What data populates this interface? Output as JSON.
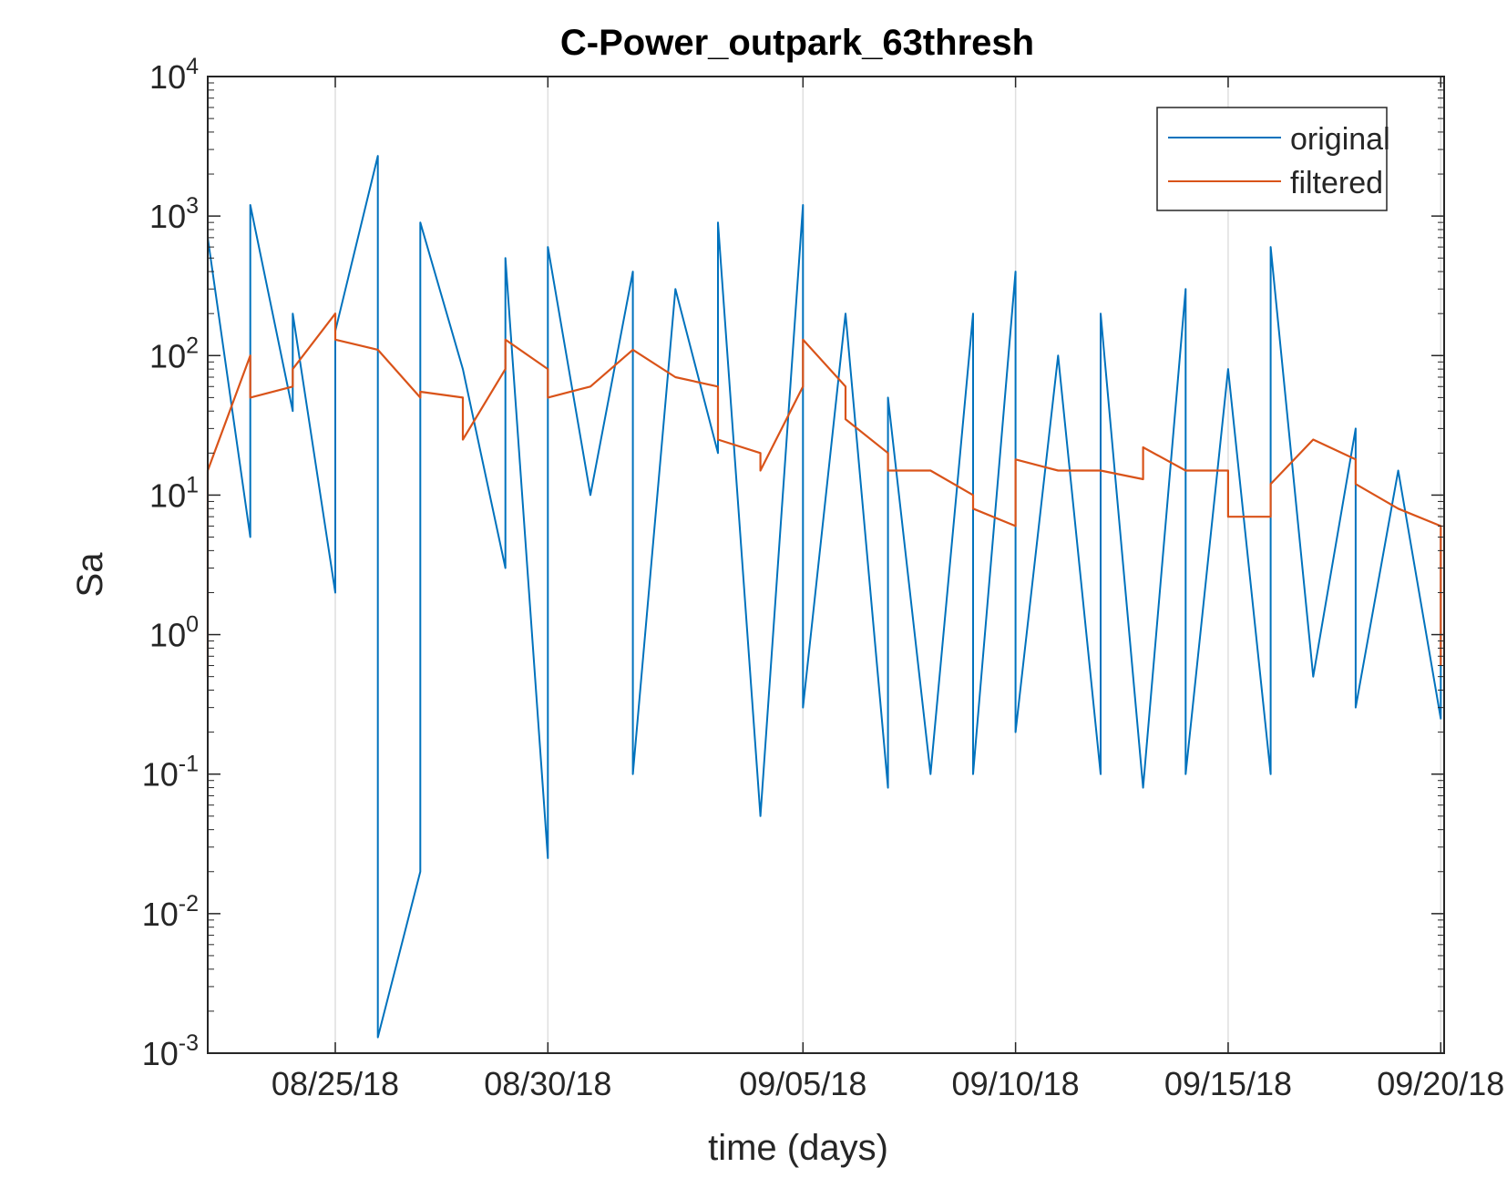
{
  "chart_data": {
    "type": "line",
    "title": "C-Power_outpark_63thresh",
    "xlabel": "time (days)",
    "ylabel": "Sa",
    "yscale": "log",
    "ylim": [
      0.001,
      10000
    ],
    "xlim": [
      "2018-08-22",
      "2018-09-20"
    ],
    "x_ticks": [
      "08/25/18",
      "08/30/18",
      "09/05/18",
      "09/10/18",
      "09/15/18",
      "09/20/18"
    ],
    "x_tick_dates": [
      "2018-08-25",
      "2018-08-30",
      "2018-09-05",
      "2018-09-10",
      "2018-09-15",
      "2018-09-20"
    ],
    "y_ticks": [
      {
        "value": 0.001,
        "base": "10",
        "exp": "-3"
      },
      {
        "value": 0.01,
        "base": "10",
        "exp": "-2"
      },
      {
        "value": 0.1,
        "base": "10",
        "exp": "-1"
      },
      {
        "value": 1,
        "base": "10",
        "exp": "0"
      },
      {
        "value": 10,
        "base": "10",
        "exp": "1"
      },
      {
        "value": 100,
        "base": "10",
        "exp": "2"
      },
      {
        "value": 1000,
        "base": "10",
        "exp": "3"
      },
      {
        "value": 10000,
        "base": "10",
        "exp": "4"
      }
    ],
    "grid": "x",
    "legend_position": "top-right",
    "series": [
      {
        "name": "original",
        "color": "#0072BD",
        "x": [
          "2018-08-22",
          "2018-08-23",
          "2018-08-23",
          "2018-08-24",
          "2018-08-24",
          "2018-08-25",
          "2018-08-25",
          "2018-08-26",
          "2018-08-26",
          "2018-08-27",
          "2018-08-27",
          "2018-08-28",
          "2018-08-29",
          "2018-08-29",
          "2018-08-30",
          "2018-08-30",
          "2018-08-31",
          "2018-09-01",
          "2018-09-01",
          "2018-09-02",
          "2018-09-03",
          "2018-09-03",
          "2018-09-04",
          "2018-09-05",
          "2018-09-05",
          "2018-09-06",
          "2018-09-07",
          "2018-09-07",
          "2018-09-08",
          "2018-09-09",
          "2018-09-09",
          "2018-09-10",
          "2018-09-10",
          "2018-09-11",
          "2018-09-12",
          "2018-09-12",
          "2018-09-13",
          "2018-09-14",
          "2018-09-14",
          "2018-09-15",
          "2018-09-16",
          "2018-09-16",
          "2018-09-17",
          "2018-09-18",
          "2018-09-18",
          "2018-09-19",
          "2018-09-20",
          "2018-09-20"
        ],
        "values": [
          700,
          5,
          1200,
          40,
          200,
          2,
          150,
          2700,
          0.0013,
          0.02,
          900,
          80,
          3,
          500,
          0.025,
          600,
          10,
          400,
          0.1,
          300,
          20,
          900,
          0.05,
          1200,
          0.3,
          200,
          0.08,
          50,
          0.1,
          200,
          0.1,
          400,
          0.2,
          100,
          0.1,
          200,
          0.08,
          300,
          0.1,
          80,
          0.1,
          600,
          0.5,
          30,
          0.3,
          15,
          0.25,
          5
        ]
      },
      {
        "name": "filtered",
        "color": "#D95319",
        "x": [
          "2018-08-22",
          "2018-08-22",
          "2018-08-22",
          "2018-08-23",
          "2018-08-23",
          "2018-08-24",
          "2018-08-24",
          "2018-08-25",
          "2018-08-25",
          "2018-08-26",
          "2018-08-27",
          "2018-08-27",
          "2018-08-28",
          "2018-08-28",
          "2018-08-29",
          "2018-08-29",
          "2018-08-30",
          "2018-08-30",
          "2018-08-31",
          "2018-09-01",
          "2018-09-02",
          "2018-09-03",
          "2018-09-03",
          "2018-09-04",
          "2018-09-04",
          "2018-09-05",
          "2018-09-05",
          "2018-09-06",
          "2018-09-06",
          "2018-09-07",
          "2018-09-07",
          "2018-09-08",
          "2018-09-09",
          "2018-09-09",
          "2018-09-10",
          "2018-09-10",
          "2018-09-11",
          "2018-09-12",
          "2018-09-13",
          "2018-09-13",
          "2018-09-14",
          "2018-09-15",
          "2018-09-15",
          "2018-09-16",
          "2018-09-16",
          "2018-09-17",
          "2018-09-18",
          "2018-09-18",
          "2018-09-19",
          "2018-09-20",
          "2018-09-20"
        ],
        "values": [
          0.5,
          10,
          15,
          100,
          50,
          60,
          80,
          200,
          130,
          110,
          50,
          55,
          50,
          25,
          80,
          130,
          80,
          50,
          60,
          110,
          70,
          60,
          25,
          20,
          15,
          60,
          130,
          60,
          35,
          20,
          15,
          15,
          10,
          8,
          6,
          18,
          15,
          15,
          13,
          22,
          15,
          15,
          7,
          7,
          12,
          25,
          18,
          12,
          8,
          6,
          0.6
        ]
      }
    ]
  }
}
